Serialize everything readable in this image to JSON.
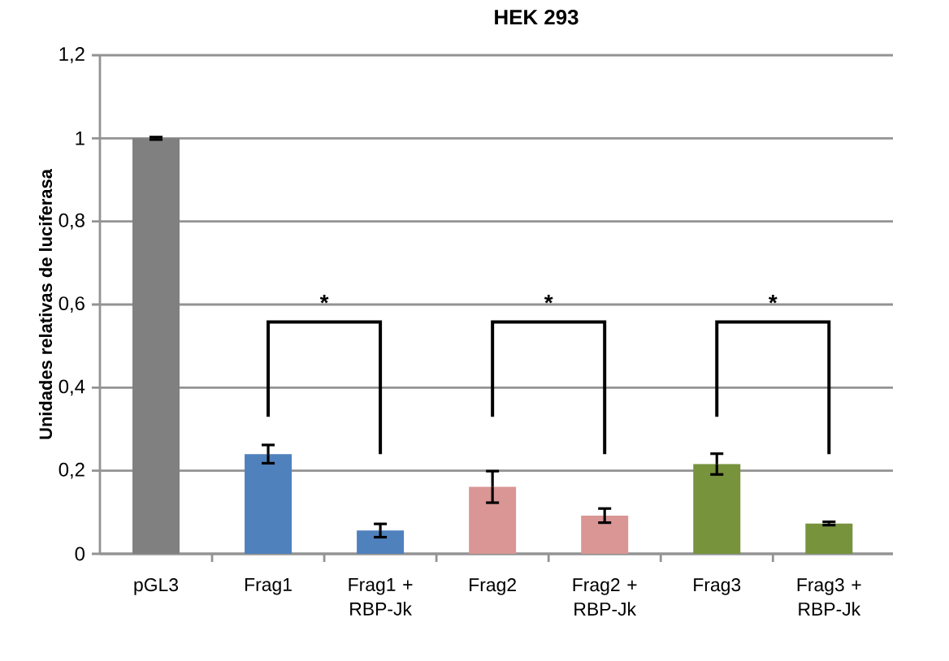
{
  "chart_data": {
    "type": "bar",
    "title": "HEK 293",
    "ylabel": "Unidades relativas de luciferasa",
    "categories": [
      "pGL3",
      "Frag1",
      "Frag1 + RBP-Jk",
      "Frag2",
      "Frag2 + RBP-Jk",
      "Frag3",
      "Frag3 + RBP-Jk"
    ],
    "values": [
      1,
      0.24,
      0.056,
      0.161,
      0.092,
      0.216,
      0.073
    ],
    "errors": [
      0.003,
      0.022,
      0.016,
      0.038,
      0.017,
      0.025,
      0.004
    ],
    "colors": [
      "#808080",
      "#4f81bd",
      "#4f81bd",
      "#d99694",
      "#d99694",
      "#77933c",
      "#77933c"
    ],
    "ylim": [
      0,
      1.2
    ],
    "yticks": [
      0,
      {
        "value": 0.2,
        "label": "0,2"
      },
      {
        "value": 0.4,
        "label": "0,4"
      },
      {
        "value": 0.6,
        "label": "0,6"
      },
      {
        "value": 0.8,
        "label": "0,8"
      },
      1,
      {
        "value": 1.2,
        "label": "1,2"
      }
    ],
    "grid": "y",
    "annotations": [
      "*",
      "*",
      "*"
    ]
  }
}
